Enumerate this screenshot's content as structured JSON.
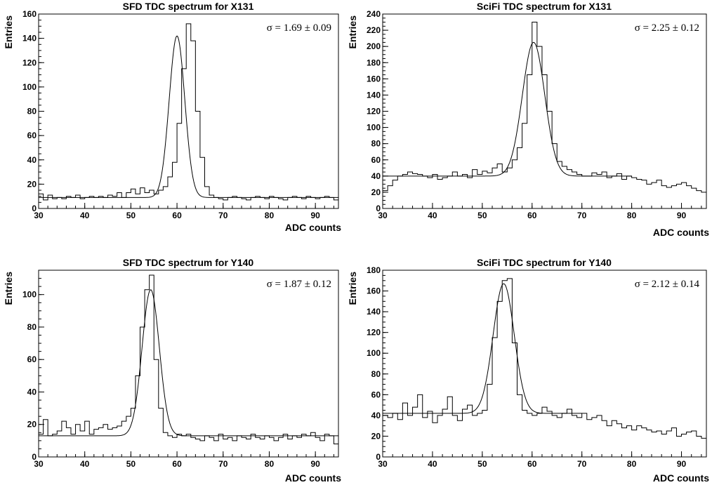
{
  "chart_data": [
    {
      "type": "histogram",
      "title": "SFD TDC spectrum for X131",
      "xlabel": "ADC counts",
      "ylabel": "Entries",
      "xlim": [
        30,
        95
      ],
      "ylim": [
        0,
        160
      ],
      "xticks": [
        30,
        40,
        50,
        60,
        70,
        80,
        90
      ],
      "yticks": [
        0,
        20,
        40,
        60,
        80,
        100,
        120,
        140,
        160
      ],
      "annotation": "σ = 1.69 ± 0.09",
      "fit": {
        "mean": 60.0,
        "sigma": 1.69,
        "amplitude": 133,
        "background": 9,
        "range": [
          30,
          95
        ]
      },
      "series": [
        {
          "type": "step",
          "x_start": 30,
          "bin_width": 1,
          "values": [
            12,
            7,
            11,
            8,
            9,
            8,
            10,
            9,
            11,
            8,
            9,
            10,
            9,
            10,
            9,
            11,
            10,
            13,
            9,
            13,
            16,
            12,
            17,
            13,
            15,
            12,
            15,
            18,
            26,
            38,
            70,
            115,
            152,
            138,
            80,
            42,
            18,
            11,
            9,
            8,
            7,
            9,
            10,
            9,
            8,
            7,
            9,
            10,
            9,
            8,
            10,
            9,
            8,
            7,
            9,
            10,
            9,
            8,
            10,
            9,
            8,
            9,
            10,
            9,
            7
          ]
        }
      ]
    },
    {
      "type": "histogram",
      "title": "SciFi TDC spectrum for X131",
      "xlabel": "ADC counts",
      "ylabel": "Entries",
      "xlim": [
        30,
        95
      ],
      "ylim": [
        0,
        240
      ],
      "xticks": [
        30,
        40,
        50,
        60,
        70,
        80,
        90
      ],
      "yticks": [
        0,
        20,
        40,
        60,
        80,
        100,
        120,
        140,
        160,
        180,
        200,
        220,
        240
      ],
      "annotation": "σ = 2.25 ± 0.12",
      "fit": {
        "mean": 60.3,
        "sigma": 2.25,
        "amplitude": 165,
        "background": 40,
        "range": [
          30,
          80
        ]
      },
      "series": [
        {
          "type": "step",
          "x_start": 30,
          "bin_width": 1,
          "values": [
            22,
            28,
            35,
            40,
            42,
            45,
            43,
            42,
            40,
            38,
            42,
            36,
            38,
            40,
            45,
            40,
            42,
            38,
            48,
            42,
            46,
            44,
            50,
            55,
            45,
            50,
            60,
            75,
            105,
            165,
            230,
            200,
            165,
            120,
            80,
            58,
            52,
            48,
            45,
            42,
            40,
            40,
            44,
            42,
            45,
            38,
            40,
            43,
            36,
            40,
            38,
            36,
            35,
            30,
            32,
            35,
            28,
            26,
            28,
            30,
            32,
            28,
            25,
            22,
            20
          ]
        }
      ]
    },
    {
      "type": "histogram",
      "title": "SFD TDC spectrum for Y140",
      "xlabel": "ADC counts",
      "ylabel": "Entries",
      "xlim": [
        30,
        95
      ],
      "ylim": [
        0,
        115
      ],
      "xticks": [
        30,
        40,
        50,
        60,
        70,
        80,
        90
      ],
      "yticks": [
        0,
        20,
        40,
        60,
        80,
        100
      ],
      "annotation": "σ = 1.87 ± 0.12",
      "fit": {
        "mean": 54.3,
        "sigma": 1.87,
        "amplitude": 90,
        "background": 13,
        "range": [
          30,
          95
        ]
      },
      "series": [
        {
          "type": "step",
          "x_start": 30,
          "bin_width": 1,
          "values": [
            14,
            23,
            13,
            14,
            16,
            22,
            18,
            14,
            20,
            16,
            22,
            14,
            17,
            18,
            20,
            17,
            18,
            19,
            22,
            25,
            30,
            50,
            80,
            103,
            112,
            60,
            30,
            15,
            13,
            12,
            14,
            13,
            14,
            12,
            11,
            10,
            13,
            12,
            10,
            14,
            11,
            12,
            10,
            13,
            12,
            11,
            14,
            12,
            11,
            13,
            12,
            10,
            12,
            14,
            11,
            13,
            12,
            14,
            13,
            15,
            12,
            10,
            14,
            13,
            8
          ]
        }
      ]
    },
    {
      "type": "histogram",
      "title": "SciFi TDC spectrum for Y140",
      "xlabel": "ADC counts",
      "ylabel": "Entries",
      "xlim": [
        30,
        95
      ],
      "ylim": [
        0,
        180
      ],
      "xticks": [
        30,
        40,
        50,
        60,
        70,
        80,
        90
      ],
      "yticks": [
        0,
        20,
        40,
        60,
        80,
        100,
        120,
        140,
        160,
        180
      ],
      "annotation": "σ = 2.12 ± 0.14",
      "fit": {
        "mean": 54.3,
        "sigma": 2.12,
        "amplitude": 125,
        "background": 42,
        "range": [
          30,
          70
        ]
      },
      "series": [
        {
          "type": "step",
          "x_start": 30,
          "bin_width": 1,
          "values": [
            40,
            38,
            42,
            36,
            52,
            40,
            48,
            60,
            38,
            44,
            33,
            40,
            46,
            58,
            40,
            35,
            46,
            50,
            40,
            42,
            45,
            70,
            115,
            150,
            170,
            172,
            110,
            60,
            45,
            42,
            40,
            42,
            48,
            44,
            40,
            38,
            42,
            46,
            40,
            38,
            42,
            36,
            38,
            40,
            35,
            30,
            35,
            32,
            28,
            30,
            26,
            30,
            28,
            26,
            24,
            25,
            22,
            25,
            28,
            20,
            22,
            24,
            25,
            20,
            18
          ]
        }
      ]
    }
  ]
}
